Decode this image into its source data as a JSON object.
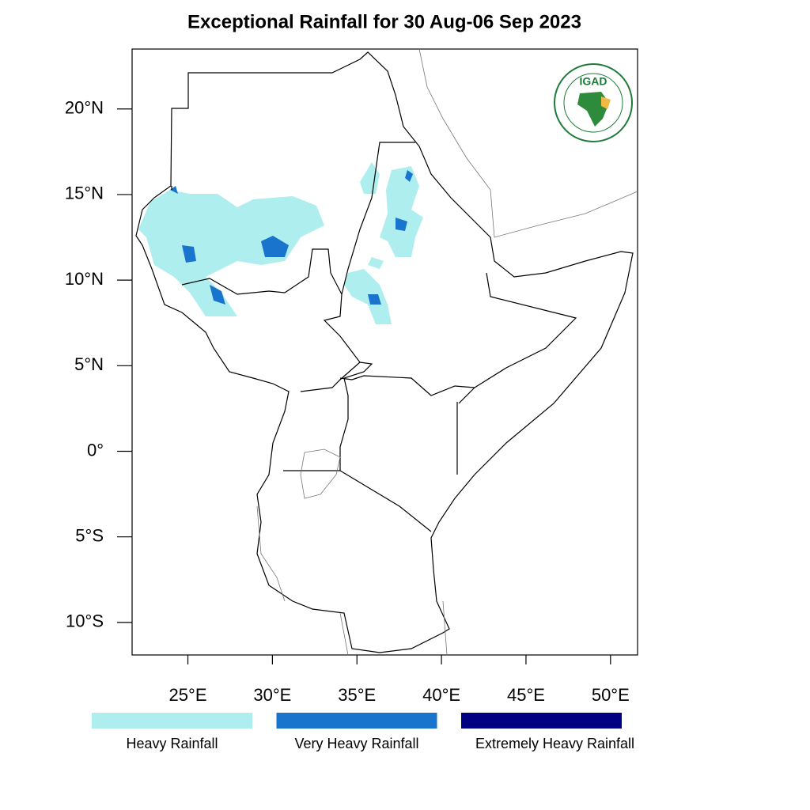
{
  "title": "Exceptional Rainfall for 30 Aug-06 Sep 2023",
  "map": {
    "xlim": [
      21.7,
      51.6
    ],
    "ylim": [
      -11.9,
      23.5
    ],
    "xticks": [
      {
        "value": 25,
        "label": "25°E"
      },
      {
        "value": 30,
        "label": "30°E"
      },
      {
        "value": 35,
        "label": "35°E"
      },
      {
        "value": 40,
        "label": "40°E"
      },
      {
        "value": 45,
        "label": "45°E"
      },
      {
        "value": 50,
        "label": "50°E"
      }
    ],
    "yticks": [
      {
        "value": 20,
        "label": "20°N"
      },
      {
        "value": 15,
        "label": "15°N"
      },
      {
        "value": 10,
        "label": "10°N"
      },
      {
        "value": 5,
        "label": "5°N"
      },
      {
        "value": 0,
        "label": "0°"
      },
      {
        "value": -5,
        "label": "5°S"
      },
      {
        "value": -10,
        "label": "10°S"
      }
    ]
  },
  "legend": [
    {
      "label": "Heavy Rainfall",
      "color": "#aeeeee"
    },
    {
      "label": "Very Heavy Rainfall",
      "color": "#1874cd"
    },
    {
      "label": "Extremely Heavy Rainfall",
      "color": "#000080"
    }
  ],
  "logo": "IGAD"
}
